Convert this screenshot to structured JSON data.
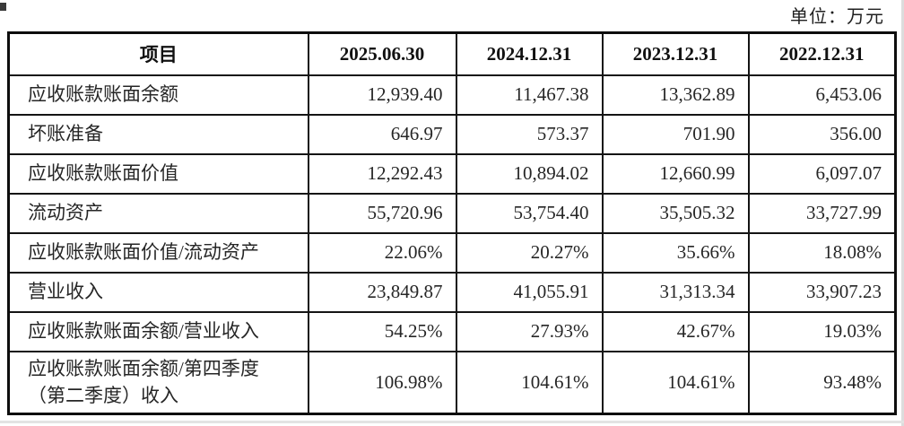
{
  "page": {
    "unit_label": "单位：万元"
  },
  "table": {
    "columns": [
      "项目",
      "2025.06.30",
      "2024.12.31",
      "2023.12.31",
      "2022.12.31"
    ],
    "rows": [
      {
        "label": "应收账款账面余额",
        "values": [
          "12,939.40",
          "11,467.38",
          "13,362.89",
          "6,453.06"
        ]
      },
      {
        "label": "坏账准备",
        "values": [
          "646.97",
          "573.37",
          "701.90",
          "356.00"
        ]
      },
      {
        "label": "应收账款账面价值",
        "values": [
          "12,292.43",
          "10,894.02",
          "12,660.99",
          "6,097.07"
        ]
      },
      {
        "label": "流动资产",
        "values": [
          "55,720.96",
          "53,754.40",
          "35,505.32",
          "33,727.99"
        ]
      },
      {
        "label": "应收账款账面价值/流动资产",
        "values": [
          "22.06%",
          "20.27%",
          "35.66%",
          "18.08%"
        ]
      },
      {
        "label": "营业收入",
        "values": [
          "23,849.87",
          "41,055.91",
          "31,313.34",
          "33,907.23"
        ]
      },
      {
        "label": "应收账款账面余额/营业收入",
        "values": [
          "54.25%",
          "27.93%",
          "42.67%",
          "19.03%"
        ]
      },
      {
        "label": "应收账款账面余额/第四季度\n（第二季度）收入",
        "values": [
          "106.98%",
          "104.61%",
          "104.61%",
          "93.48%"
        ]
      }
    ]
  }
}
